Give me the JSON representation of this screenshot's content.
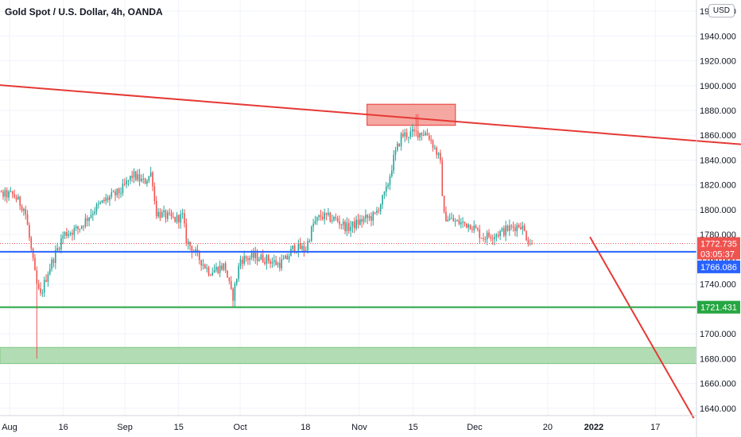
{
  "header": {
    "title": "Gold Spot / U.S. Dollar, 4h, OANDA",
    "currency": "USD"
  },
  "colors": {
    "up": "#26a69a",
    "down": "#ef5350",
    "trend": "#e53935",
    "support_blue": "#2962ff",
    "support_green": "#26a641",
    "zone_red": "#f28b82",
    "zone_green": "#a5d6a7"
  },
  "chart_data": {
    "type": "candlestick",
    "title": "Gold Spot / U.S. Dollar, 4h, OANDA",
    "ylim": [
      1630,
      1962
    ],
    "grid": true,
    "y_ticks": [
      "1640.000",
      "1660.000",
      "1680.000",
      "1700.000",
      "1720.000",
      "1740.000",
      "1760.000",
      "1780.000",
      "1800.000",
      "1820.000",
      "1840.000",
      "1860.000",
      "1880.000",
      "1900.000",
      "1920.000",
      "1940.000",
      "1960.000"
    ],
    "x_labels": [
      "Aug",
      "16",
      "Sep",
      "15",
      "Oct",
      "18",
      "Nov",
      "15",
      "Dec",
      "20",
      "2022",
      "17"
    ],
    "bold_x_labels": [
      "2022"
    ],
    "price_labels": [
      {
        "text": "1772.735",
        "value": 1772.735,
        "kind": "last"
      },
      {
        "text": "03:05:37",
        "kind": "countdown"
      },
      {
        "text": "1766.086",
        "value": 1766.086,
        "kind": "blue"
      },
      {
        "text": "1721.431",
        "value": 1721.431,
        "kind": "green"
      }
    ],
    "path": [
      [
        "2021-07-26",
        1832
      ],
      [
        "2021-07-30",
        1812
      ],
      [
        "2021-08-03",
        1812
      ],
      [
        "2021-08-06",
        1800
      ],
      [
        "2021-08-08",
        1760
      ],
      [
        "2021-08-09",
        1740
      ],
      [
        "2021-08-10",
        1730
      ],
      [
        "2021-08-12",
        1750
      ],
      [
        "2021-08-16",
        1780
      ],
      [
        "2021-08-20",
        1785
      ],
      [
        "2021-08-24",
        1800
      ],
      [
        "2021-08-27",
        1808
      ],
      [
        "2021-08-31",
        1815
      ],
      [
        "2021-09-03",
        1828
      ],
      [
        "2021-09-06",
        1822
      ],
      [
        "2021-09-08",
        1830
      ],
      [
        "2021-09-09",
        1798
      ],
      [
        "2021-09-14",
        1792
      ],
      [
        "2021-09-16",
        1795
      ],
      [
        "2021-09-17",
        1775
      ],
      [
        "2021-09-20",
        1762
      ],
      [
        "2021-09-23",
        1750
      ],
      [
        "2021-09-27",
        1755
      ],
      [
        "2021-09-29",
        1728
      ],
      [
        "2021-10-01",
        1760
      ],
      [
        "2021-10-05",
        1762
      ],
      [
        "2021-10-08",
        1760
      ],
      [
        "2021-10-11",
        1756
      ],
      [
        "2021-10-13",
        1760
      ],
      [
        "2021-10-15",
        1770
      ],
      [
        "2021-10-18",
        1768
      ],
      [
        "2021-10-20",
        1788
      ],
      [
        "2021-10-22",
        1795
      ],
      [
        "2021-10-26",
        1792
      ],
      [
        "2021-10-29",
        1785
      ],
      [
        "2021-11-02",
        1792
      ],
      [
        "2021-11-05",
        1795
      ],
      [
        "2021-11-08",
        1815
      ],
      [
        "2021-11-10",
        1842
      ],
      [
        "2021-11-12",
        1860
      ],
      [
        "2021-11-16",
        1862
      ],
      [
        "2021-11-18",
        1862
      ],
      [
        "2021-11-19",
        1860
      ],
      [
        "2021-11-22",
        1840
      ],
      [
        "2021-11-23",
        1795
      ],
      [
        "2021-11-26",
        1790
      ],
      [
        "2021-11-30",
        1788
      ],
      [
        "2021-12-03",
        1778
      ],
      [
        "2021-12-06",
        1780
      ],
      [
        "2021-12-08",
        1782
      ],
      [
        "2021-12-10",
        1785
      ],
      [
        "2021-12-13",
        1788
      ],
      [
        "2021-12-15",
        1775
      ],
      [
        "2021-12-16",
        1772.7
      ]
    ],
    "events": [
      {
        "date": "2021-08-09",
        "low": 1680
      },
      {
        "date": "2021-11-16",
        "high": 1877
      },
      {
        "date": "2021-09-29",
        "low": 1721
      }
    ],
    "lines": [
      {
        "kind": "trendline",
        "from": [
          "2021-07-24",
          1902
        ],
        "to": [
          "2022-02-11",
          1852
        ]
      },
      {
        "kind": "trendline",
        "from": [
          "2021-12-31",
          1778
        ],
        "to": [
          "2022-01-27",
          1632
        ]
      },
      {
        "kind": "horizontal",
        "value": 1766.086,
        "label": "1766.086"
      },
      {
        "kind": "horizontal",
        "value": 1721.431,
        "label": "1721.431"
      }
    ],
    "zones": [
      {
        "kind": "resistance",
        "x_from": "2021-11-03",
        "x_to": "2021-11-26",
        "y_from": 1868,
        "y_to": 1885
      },
      {
        "kind": "support",
        "x_from": "2021-07-24",
        "x_to": "2022-02-11",
        "y_from": 1676,
        "y_to": 1689
      }
    ]
  }
}
